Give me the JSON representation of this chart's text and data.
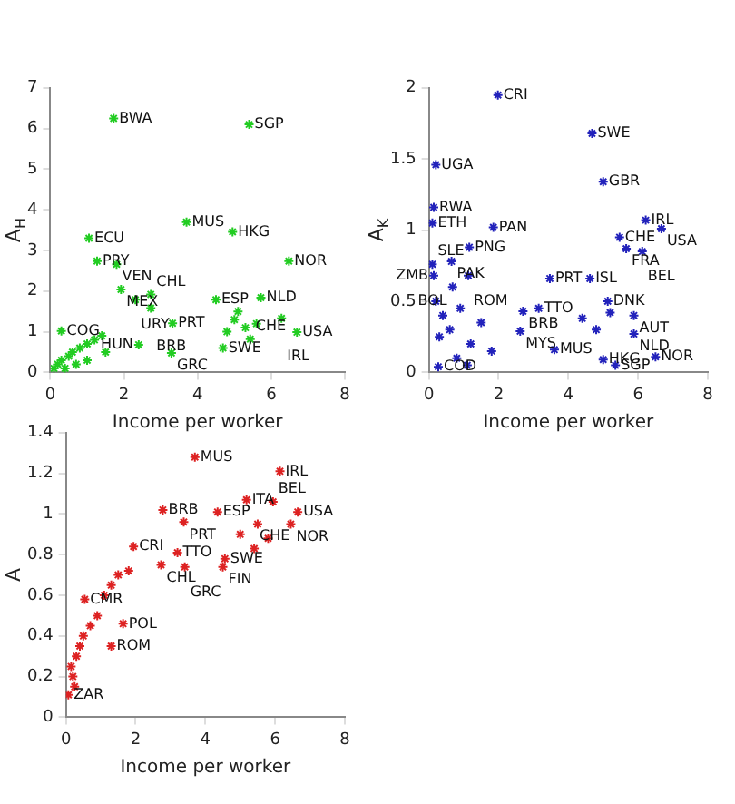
{
  "chart_data": [
    {
      "type": "scatter",
      "xlabel": "Income per worker",
      "ylabel": "A$_{H}$",
      "marker": "cross",
      "color": "#22cc22",
      "xlim": [
        0,
        8
      ],
      "xticks": [
        0,
        2,
        4,
        6,
        8
      ],
      "ylim": [
        0,
        7
      ],
      "yticks": [
        0,
        1,
        2,
        3,
        4,
        5,
        6,
        7
      ],
      "x": [
        1.72,
        5.4,
        3.7,
        4.95,
        1.05,
        1.27,
        1.8,
        6.48,
        1.92,
        2.73,
        2.31,
        2.73,
        4.5,
        5.72,
        6.7,
        4.69,
        3.29,
        5.43,
        0.3,
        2.4,
        3.32,
        6.28,
        0.1,
        0.2,
        0.3,
        0.5,
        0.6,
        0.8,
        1.0,
        1.2,
        1.4,
        1.5,
        0.4,
        0.7,
        1.0,
        5.0,
        5.3,
        5.6,
        4.8,
        5.1
      ],
      "values": [
        6.25,
        6.1,
        3.7,
        3.46,
        3.3,
        2.74,
        2.66,
        2.74,
        2.04,
        1.92,
        1.79,
        1.58,
        1.79,
        1.84,
        0.99,
        0.6,
        0.48,
        0.82,
        1.02,
        0.68,
        1.21,
        1.33,
        0.1,
        0.2,
        0.3,
        0.4,
        0.5,
        0.6,
        0.7,
        0.8,
        0.9,
        0.5,
        0.1,
        0.2,
        0.3,
        1.3,
        1.1,
        1.2,
        1.0,
        1.5
      ],
      "annotations": [
        {
          "text": "BWA",
          "x": 1.72,
          "y": 6.25
        },
        {
          "text": "SGP",
          "x": 5.4,
          "y": 6.1
        },
        {
          "text": "MUS",
          "x": 3.7,
          "y": 3.7
        },
        {
          "text": "HKG",
          "x": 4.95,
          "y": 3.46
        },
        {
          "text": "ECU",
          "x": 1.05,
          "y": 3.3
        },
        {
          "text": "PRY",
          "x": 1.27,
          "y": 2.74
        },
        {
          "text": "VEN",
          "x": 1.8,
          "y": 2.66
        },
        {
          "text": "NOR",
          "x": 6.48,
          "y": 2.74
        },
        {
          "text": "MEX",
          "x": 1.92,
          "y": 2.04
        },
        {
          "text": "CHL",
          "x": 2.73,
          "y": 1.92
        },
        {
          "text": "URY",
          "x": 2.31,
          "y": 1.79
        },
        {
          "text": "BRB",
          "x": 2.73,
          "y": 1.58
        },
        {
          "text": "ESP",
          "x": 4.5,
          "y": 1.79
        },
        {
          "text": "NLD",
          "x": 5.72,
          "y": 1.84
        },
        {
          "text": "USA",
          "x": 6.7,
          "y": 0.99
        },
        {
          "text": "SWE",
          "x": 4.69,
          "y": 0.6
        },
        {
          "text": "GRC",
          "x": 3.29,
          "y": 0.48
        },
        {
          "text": "CHE",
          "x": 5.43,
          "y": 0.82
        },
        {
          "text": "COG",
          "x": 0.3,
          "y": 1.02
        },
        {
          "text": "HUN",
          "x": 2.4,
          "y": 0.68
        },
        {
          "text": "PRT",
          "x": 3.32,
          "y": 1.21
        },
        {
          "text": "IRL",
          "x": 6.28,
          "y": 1.33
        }
      ]
    },
    {
      "type": "scatter",
      "xlabel": "Income per worker",
      "ylabel": "A$_{K}$",
      "marker": "cross",
      "color": "#2222bb",
      "xlim": [
        0,
        8
      ],
      "xticks": [
        0,
        2,
        4,
        6,
        8
      ],
      "ylim": [
        0,
        2
      ],
      "yticks": [
        0,
        0.5,
        1,
        1.5,
        2
      ],
      "x": [
        1.98,
        4.68,
        0.2,
        5.0,
        0.14,
        1.85,
        0.1,
        6.22,
        6.67,
        5.47,
        5.66,
        6.12,
        1.16,
        0.65,
        0.1,
        1.13,
        0.14,
        0.68,
        3.47,
        4.62,
        3.15,
        2.7,
        5.13,
        5.88,
        5.88,
        2.62,
        3.6,
        5.0,
        5.35,
        6.5,
        0.27,
        0.2,
        0.4,
        0.6,
        0.9,
        1.2,
        1.5,
        1.8,
        0.3,
        0.8,
        1.1,
        4.4,
        4.8,
        5.2
      ],
      "values": [
        1.95,
        1.68,
        1.46,
        1.34,
        1.16,
        1.02,
        1.05,
        1.07,
        1.01,
        0.95,
        0.87,
        0.85,
        0.88,
        0.78,
        0.76,
        0.68,
        0.68,
        0.6,
        0.66,
        0.66,
        0.45,
        0.43,
        0.5,
        0.4,
        0.27,
        0.29,
        0.16,
        0.09,
        0.05,
        0.11,
        0.04,
        0.5,
        0.4,
        0.3,
        0.45,
        0.2,
        0.35,
        0.15,
        0.25,
        0.1,
        0.05,
        0.38,
        0.3,
        0.42
      ],
      "annotations": [
        {
          "text": "CRI",
          "x": 1.98,
          "y": 1.95
        },
        {
          "text": "SWE",
          "x": 4.68,
          "y": 1.68
        },
        {
          "text": "UGA",
          "x": 0.2,
          "y": 1.46
        },
        {
          "text": "GBR",
          "x": 5.0,
          "y": 1.34
        },
        {
          "text": "RWA",
          "x": 0.14,
          "y": 1.16
        },
        {
          "text": "PAN",
          "x": 1.85,
          "y": 1.02
        },
        {
          "text": "ETH",
          "x": 0.1,
          "y": 1.05
        },
        {
          "text": "IRL",
          "x": 6.22,
          "y": 1.07
        },
        {
          "text": "USA",
          "x": 6.67,
          "y": 1.01
        },
        {
          "text": "CHE",
          "x": 5.47,
          "y": 0.95
        },
        {
          "text": "FRA",
          "x": 5.66,
          "y": 0.87
        },
        {
          "text": "BEL",
          "x": 6.12,
          "y": 0.85
        },
        {
          "text": "PNG",
          "x": 1.16,
          "y": 0.88
        },
        {
          "text": "PAK",
          "x": 0.65,
          "y": 0.78
        },
        {
          "text": "SLE",
          "x": 0.1,
          "y": 0.76
        },
        {
          "text": "ROM",
          "x": 1.13,
          "y": 0.68
        },
        {
          "text": "ZMB",
          "x": 0.14,
          "y": 0.68
        },
        {
          "text": "BOL",
          "x": 0.68,
          "y": 0.6
        },
        {
          "text": "PRT",
          "x": 3.47,
          "y": 0.66
        },
        {
          "text": "ISL",
          "x": 4.62,
          "y": 0.66
        },
        {
          "text": "TTO",
          "x": 3.15,
          "y": 0.45
        },
        {
          "text": "BRB",
          "x": 2.7,
          "y": 0.43
        },
        {
          "text": "DNK",
          "x": 5.13,
          "y": 0.5
        },
        {
          "text": "AUT",
          "x": 5.88,
          "y": 0.4
        },
        {
          "text": "NLD",
          "x": 5.88,
          "y": 0.27
        },
        {
          "text": "MYS",
          "x": 2.62,
          "y": 0.29
        },
        {
          "text": "MUS",
          "x": 3.6,
          "y": 0.16
        },
        {
          "text": "HKG",
          "x": 5.0,
          "y": 0.09
        },
        {
          "text": "SGP",
          "x": 5.35,
          "y": 0.05
        },
        {
          "text": "NOR",
          "x": 6.5,
          "y": 0.11
        },
        {
          "text": "COD",
          "x": 0.27,
          "y": 0.04
        }
      ]
    },
    {
      "type": "scatter",
      "xlabel": "Income per worker",
      "ylabel": "A",
      "marker": "cross",
      "color": "#dd2222",
      "xlim": [
        0,
        8
      ],
      "xticks": [
        0,
        2,
        4,
        6,
        8
      ],
      "ylim": [
        0,
        1.4
      ],
      "yticks": [
        0,
        0.2,
        0.4,
        0.6,
        0.8,
        1,
        1.2,
        1.4
      ],
      "x": [
        3.7,
        6.14,
        5.18,
        2.78,
        3.38,
        6.65,
        6.45,
        5.94,
        4.35,
        4.56,
        5.4,
        4.5,
        3.2,
        1.94,
        2.73,
        3.41,
        0.54,
        1.64,
        1.3,
        0.07,
        0.2,
        0.3,
        0.4,
        0.5,
        0.7,
        0.9,
        1.1,
        1.3,
        1.5,
        1.8,
        0.15,
        0.25,
        5.0,
        5.5,
        5.8
      ],
      "values": [
        1.28,
        1.21,
        1.07,
        1.02,
        0.96,
        1.01,
        0.95,
        1.06,
        1.01,
        0.78,
        0.83,
        0.74,
        0.81,
        0.84,
        0.75,
        0.74,
        0.58,
        0.46,
        0.35,
        0.11,
        0.2,
        0.3,
        0.35,
        0.4,
        0.45,
        0.5,
        0.6,
        0.65,
        0.7,
        0.72,
        0.25,
        0.15,
        0.9,
        0.95,
        0.88
      ],
      "annotations": [
        {
          "text": "MUS",
          "x": 3.7,
          "y": 1.28
        },
        {
          "text": "IRL",
          "x": 6.14,
          "y": 1.21
        },
        {
          "text": "ITA",
          "x": 5.18,
          "y": 1.07
        },
        {
          "text": "BRB",
          "x": 2.78,
          "y": 1.02
        },
        {
          "text": "PRT",
          "x": 3.38,
          "y": 0.96
        },
        {
          "text": "USA",
          "x": 6.65,
          "y": 1.01
        },
        {
          "text": "NOR",
          "x": 6.45,
          "y": 0.95
        },
        {
          "text": "BEL",
          "x": 5.94,
          "y": 1.06
        },
        {
          "text": "ESP",
          "x": 4.35,
          "y": 1.01
        },
        {
          "text": "SWE",
          "x": 4.56,
          "y": 0.78
        },
        {
          "text": "CHE",
          "x": 5.4,
          "y": 0.83
        },
        {
          "text": "FIN",
          "x": 4.5,
          "y": 0.74
        },
        {
          "text": "TTO",
          "x": 3.2,
          "y": 0.81
        },
        {
          "text": "CRI",
          "x": 1.94,
          "y": 0.84
        },
        {
          "text": "CHL",
          "x": 2.73,
          "y": 0.75
        },
        {
          "text": "GRC",
          "x": 3.41,
          "y": 0.74
        },
        {
          "text": "CMR",
          "x": 0.54,
          "y": 0.58
        },
        {
          "text": "POL",
          "x": 1.64,
          "y": 0.46
        },
        {
          "text": "ROM",
          "x": 1.3,
          "y": 0.35
        },
        {
          "text": "ZAR",
          "x": 0.07,
          "y": 0.11
        }
      ]
    }
  ]
}
